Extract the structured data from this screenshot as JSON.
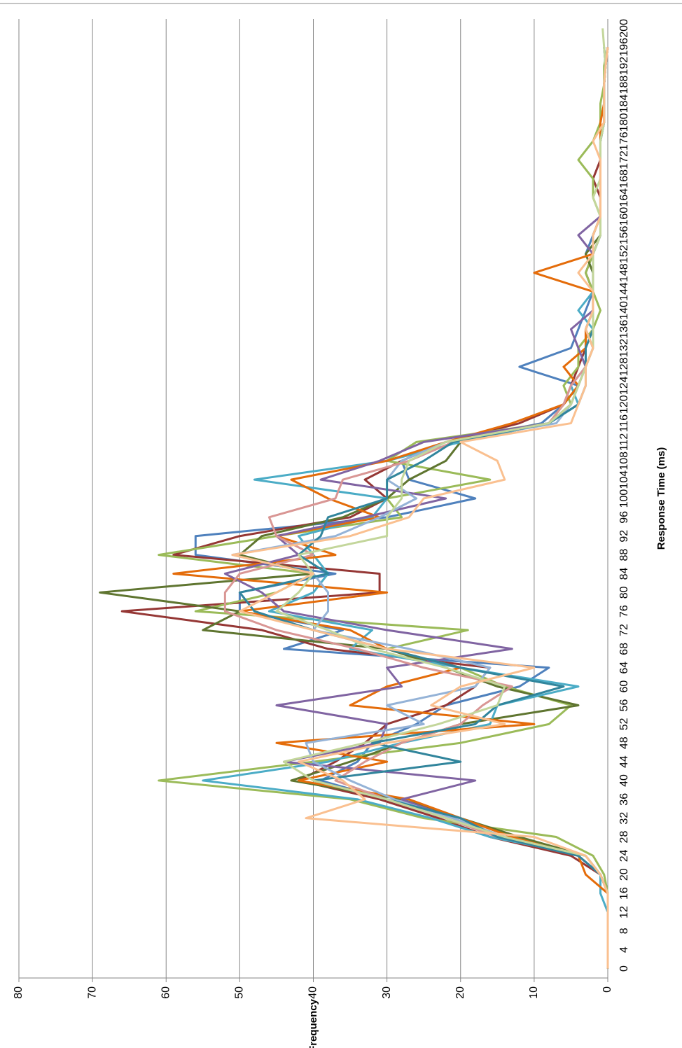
{
  "chart_data": {
    "type": "line",
    "x_label": "Response Time (ms)",
    "y_label": "Frequency",
    "categories": [
      0,
      4,
      8,
      12,
      16,
      20,
      24,
      28,
      32,
      36,
      40,
      44,
      48,
      52,
      56,
      60,
      64,
      68,
      72,
      76,
      80,
      84,
      88,
      92,
      96,
      100,
      104,
      108,
      112,
      116,
      120,
      124,
      128,
      132,
      136,
      140,
      144,
      148,
      152,
      156,
      160,
      164,
      168,
      172,
      176,
      180,
      184,
      188,
      192,
      196,
      200
    ],
    "ylim": [
      0,
      80
    ],
    "yticks": [
      0,
      10,
      20,
      30,
      40,
      50,
      60,
      70,
      80
    ],
    "grid": true,
    "series": [
      {
        "color": "#4F81BD",
        "values": [
          0,
          0,
          0,
          0,
          0,
          1,
          4,
          15,
          22,
          30,
          39,
          34,
          32,
          26,
          22,
          12,
          8,
          44,
          36,
          50,
          50,
          37,
          56,
          56,
          30,
          18,
          27,
          28,
          22,
          9,
          6,
          4,
          12,
          5,
          4,
          3,
          2,
          2,
          3,
          2,
          1,
          1,
          1,
          1,
          1,
          0.5,
          0.5,
          0.5,
          0.3,
          0.5,
          null
        ]
      },
      {
        "color": "#953735",
        "values": [
          0,
          0,
          0,
          0,
          0,
          1,
          5,
          16,
          23,
          31,
          42,
          37,
          33,
          30,
          22,
          18,
          16,
          38,
          47,
          66,
          31,
          31,
          59,
          50,
          35,
          30,
          33,
          28,
          22,
          12,
          6,
          5,
          4,
          3,
          3,
          2,
          2,
          3,
          2,
          1,
          1,
          1,
          2,
          1,
          1,
          1,
          0.5,
          0.5,
          0.3,
          0,
          null
        ]
      },
      {
        "color": "#9BBB59",
        "values": [
          0,
          0,
          0,
          0,
          0,
          0.5,
          2,
          7,
          25,
          35,
          61,
          40,
          20,
          8,
          5,
          14,
          20,
          30,
          19,
          56,
          45,
          40,
          61,
          45,
          28,
          30,
          16,
          30,
          26,
          8,
          5,
          6,
          4,
          4,
          2,
          1,
          2,
          3,
          2,
          2,
          1,
          2,
          2,
          4,
          2,
          1,
          1,
          0.5,
          0.5,
          0,
          null
        ]
      },
      {
        "color": "#5F7530",
        "values": [
          0,
          0,
          0,
          0,
          0,
          1,
          3,
          12,
          20,
          28,
          43,
          35,
          28,
          20,
          4,
          15,
          22,
          30,
          55,
          50,
          69,
          40,
          50,
          47,
          36,
          30,
          27,
          22,
          20,
          8,
          6,
          4,
          3,
          2,
          3,
          2,
          2,
          2,
          3,
          1,
          1,
          1,
          1,
          1,
          1,
          0.5,
          0.5,
          0.5,
          0.3,
          0,
          null
        ]
      },
      {
        "color": "#4BACC6",
        "values": [
          0,
          0,
          0,
          0,
          1,
          1,
          3,
          16,
          24,
          34,
          55,
          38,
          28,
          16,
          15,
          4,
          20,
          35,
          32,
          46,
          40,
          38,
          40,
          42,
          32,
          30,
          48,
          30,
          20,
          8,
          4,
          5,
          3,
          3,
          2,
          4,
          2,
          2,
          2,
          2,
          1,
          1,
          1,
          1,
          1,
          0.5,
          0.5,
          0.5,
          0.3,
          0,
          null
        ]
      },
      {
        "color": "#E46C0A",
        "values": [
          0,
          0,
          0,
          0,
          0,
          3,
          4,
          13,
          20,
          27,
          42,
          30,
          45,
          10,
          35,
          30,
          20,
          30,
          35,
          50,
          30,
          59,
          37,
          45,
          31,
          38,
          43,
          30,
          22,
          13,
          6,
          4,
          6,
          3,
          3,
          2,
          2,
          10,
          2,
          2,
          1,
          1,
          1,
          1,
          1,
          1,
          0.5,
          0.5,
          0.3,
          0,
          null
        ]
      },
      {
        "color": "#8064A2",
        "values": [
          0,
          0,
          0,
          0,
          0,
          1,
          4,
          14,
          21,
          28,
          18,
          44,
          31,
          30,
          45,
          28,
          30,
          13,
          30,
          44,
          47,
          52,
          42,
          45,
          33,
          22,
          39,
          31,
          25,
          8,
          5,
          4,
          3,
          4,
          5,
          2,
          2,
          2,
          2,
          4,
          1,
          1,
          1,
          1,
          1,
          0.5,
          0.5,
          0.5,
          0.3,
          0,
          null
        ]
      },
      {
        "color": "#95B3D7",
        "values": [
          0,
          0,
          0,
          0,
          0,
          1,
          4,
          14,
          21,
          29,
          35,
          40,
          41,
          25,
          30,
          18,
          16,
          27,
          40,
          38,
          38,
          40,
          51,
          37,
          31,
          26,
          30,
          28,
          22,
          7,
          5,
          4,
          3,
          2,
          3,
          2,
          2,
          2,
          2,
          2,
          1,
          1,
          1,
          1,
          1,
          0.5,
          0.5,
          0.5,
          0.3,
          0,
          null
        ]
      },
      {
        "color": "#D99694",
        "values": [
          0,
          0,
          0,
          0,
          0,
          1,
          4,
          15,
          22,
          30,
          37,
          33,
          28,
          20,
          17,
          13,
          25,
          34,
          45,
          52,
          52,
          50,
          40,
          45,
          46,
          37,
          36,
          27,
          21,
          8,
          6,
          5,
          3,
          3,
          2,
          2,
          2,
          2,
          2,
          1,
          1,
          1,
          1,
          1,
          1,
          0.5,
          0.5,
          0.5,
          0.3,
          0,
          null
        ]
      },
      {
        "color": "#31859C",
        "values": [
          0,
          0,
          0,
          0,
          0,
          1,
          4,
          15,
          20,
          30,
          40,
          20,
          32,
          18,
          15,
          6,
          20,
          30,
          40,
          48,
          50,
          38,
          42,
          39,
          38,
          30,
          30,
          25,
          21,
          8,
          4,
          3,
          3,
          3,
          2,
          2,
          2,
          2,
          2,
          1,
          1,
          1,
          1,
          1,
          1,
          0.5,
          0.5,
          0.5,
          0.3,
          0.5,
          null
        ]
      },
      {
        "color": "#C3D69B",
        "values": [
          0,
          0,
          0,
          0,
          0,
          1,
          3,
          14,
          22,
          30,
          40,
          44,
          33,
          23,
          15,
          14,
          22,
          32,
          38,
          45,
          42,
          40,
          42,
          30,
          30,
          28,
          28,
          27,
          22,
          8,
          5,
          4,
          3,
          2,
          2,
          2,
          2,
          2,
          2,
          1,
          1,
          2,
          1,
          1,
          1,
          0.5,
          0.5,
          0.5,
          0.3,
          0.5,
          0.7
        ]
      },
      {
        "color": "#FAC090",
        "values": [
          0,
          0,
          0,
          0,
          0,
          1,
          3,
          10,
          41,
          33,
          36,
          42,
          30,
          14,
          24,
          20,
          10,
          30,
          40,
          50,
          45,
          40,
          51,
          35,
          27,
          25,
          14,
          15,
          20,
          5,
          4,
          3,
          3,
          2,
          3,
          2,
          2,
          4,
          2,
          2,
          1,
          1,
          1,
          1,
          2,
          0.5,
          0.5,
          0.5,
          0.3,
          0,
          null
        ]
      }
    ]
  }
}
